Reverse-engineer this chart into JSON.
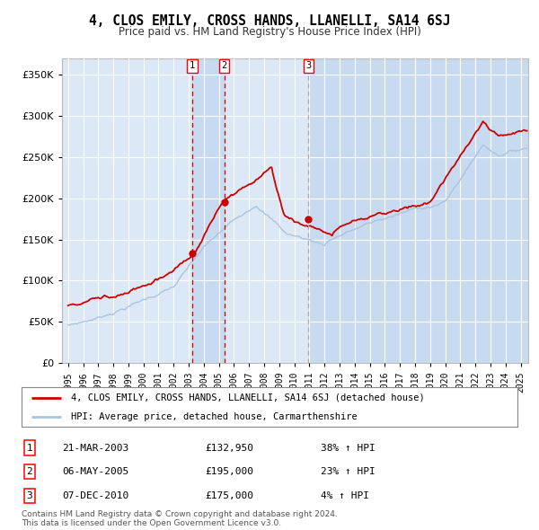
{
  "title": "4, CLOS EMILY, CROSS HANDS, LLANELLI, SA14 6SJ",
  "subtitle": "Price paid vs. HM Land Registry's House Price Index (HPI)",
  "legend_line1": "4, CLOS EMILY, CROSS HANDS, LLANELLI, SA14 6SJ (detached house)",
  "legend_line2": "HPI: Average price, detached house, Carmarthenshire",
  "footer1": "Contains HM Land Registry data © Crown copyright and database right 2024.",
  "footer2": "This data is licensed under the Open Government Licence v3.0.",
  "transactions": [
    {
      "num": 1,
      "date": "21-MAR-2003",
      "price": 132950,
      "price_str": "£132,950",
      "pct": "38%",
      "dir": "↑"
    },
    {
      "num": 2,
      "date": "06-MAY-2005",
      "price": 195000,
      "price_str": "£195,000",
      "pct": "23%",
      "dir": "↑"
    },
    {
      "num": 3,
      "date": "07-DEC-2010",
      "price": 175000,
      "price_str": "£175,000",
      "pct": "4%",
      "dir": "↑"
    }
  ],
  "transaction_dates_decimal": [
    2003.22,
    2005.35,
    2010.93
  ],
  "hpi_color": "#aac4e0",
  "price_color": "#cc0000",
  "dot_color": "#cc0000",
  "plot_bg": "#dce8f5",
  "grid_color": "#ffffff",
  "vline_color_red": "#cc0000",
  "vline_color_grey": "#aaaaaa",
  "shade_color": "#c5d8ee",
  "ylim": [
    0,
    370000
  ],
  "xlim_start": 1994.6,
  "xlim_end": 2025.5,
  "years": [
    1995,
    1996,
    1997,
    1998,
    1999,
    2000,
    2001,
    2002,
    2003,
    2004,
    2005,
    2006,
    2007,
    2008,
    2009,
    2010,
    2011,
    2012,
    2013,
    2014,
    2015,
    2016,
    2017,
    2018,
    2019,
    2020,
    2021,
    2022,
    2023,
    2024,
    2025
  ]
}
